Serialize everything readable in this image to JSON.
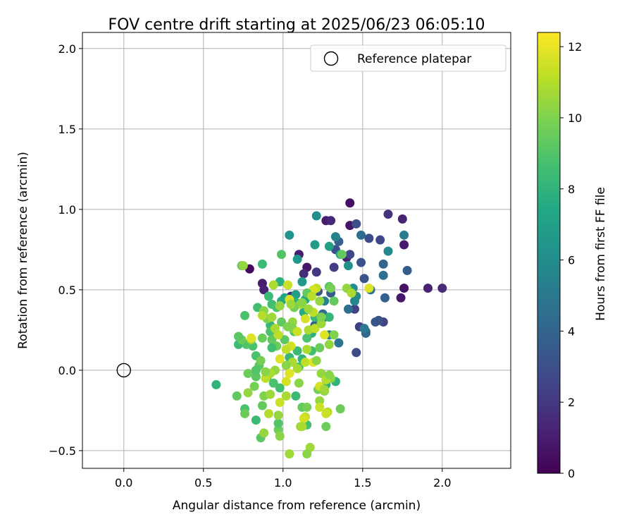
{
  "chart_data": {
    "type": "scatter",
    "title": "FOV centre drift starting at 2025/06/23 06:05:10",
    "xlabel": "Angular distance from reference (arcmin)",
    "ylabel": "Rotation from reference (arcmin)",
    "xlim": [
      -0.26,
      2.43
    ],
    "ylim": [
      -0.61,
      2.1
    ],
    "xticks": [
      0.0,
      0.5,
      1.0,
      1.5,
      2.0
    ],
    "xtick_labels": [
      "0.0",
      "0.5",
      "1.0",
      "1.5",
      "2.0"
    ],
    "yticks": [
      -0.5,
      0.0,
      0.5,
      1.0,
      1.5,
      2.0
    ],
    "ytick_labels": [
      "−0.5",
      "0.0",
      "0.5",
      "1.0",
      "1.5",
      "2.0"
    ],
    "grid": true,
    "legend": {
      "position": "top-right",
      "label": "Reference platepar"
    },
    "reference_point": {
      "x": 0.0,
      "y": 0.0
    },
    "colorbar": {
      "label": "Hours from first FF file",
      "range": [
        0,
        12.4
      ],
      "ticks": [
        0,
        2,
        4,
        6,
        8,
        10,
        12
      ],
      "tick_labels": [
        "0",
        "2",
        "4",
        "6",
        "8",
        "10",
        "12"
      ],
      "colormap": "viridis"
    },
    "points": [
      [
        1.42,
        1.04,
        0.5
      ],
      [
        0.79,
        0.63,
        0.3
      ],
      [
        1.76,
        0.51,
        0.6
      ],
      [
        1.91,
        0.51,
        1.2
      ],
      [
        2.0,
        0.51,
        1.5
      ],
      [
        1.74,
        0.45,
        0.8
      ],
      [
        1.76,
        0.78,
        0.9
      ],
      [
        1.75,
        0.94,
        1.2
      ],
      [
        1.66,
        0.97,
        1.8
      ],
      [
        1.42,
        0.9,
        0.7
      ],
      [
        1.27,
        0.93,
        1.0
      ],
      [
        1.3,
        0.93,
        1.4
      ],
      [
        1.4,
        0.7,
        1.2
      ],
      [
        1.1,
        0.72,
        1.0
      ],
      [
        1.15,
        0.64,
        0.8
      ],
      [
        1.13,
        0.6,
        1.6
      ],
      [
        0.87,
        0.54,
        1.0
      ],
      [
        0.88,
        0.5,
        1.2
      ],
      [
        1.05,
        0.46,
        1.5
      ],
      [
        1.21,
        0.61,
        2.0
      ],
      [
        1.32,
        0.64,
        2.2
      ],
      [
        1.45,
        0.38,
        2.4
      ],
      [
        1.61,
        0.81,
        2.6
      ],
      [
        1.54,
        0.82,
        2.8
      ],
      [
        1.63,
        0.3,
        2.5
      ],
      [
        1.48,
        0.27,
        2.2
      ],
      [
        1.46,
        0.11,
        2.8
      ],
      [
        1.42,
        0.72,
        2.6
      ],
      [
        1.46,
        0.91,
        3.0
      ],
      [
        1.49,
        0.67,
        3.2
      ],
      [
        1.33,
        0.75,
        3.0
      ],
      [
        1.22,
        0.49,
        3.4
      ],
      [
        1.3,
        0.48,
        3.6
      ],
      [
        1.58,
        0.3,
        3.4
      ],
      [
        1.6,
        0.31,
        3.2
      ],
      [
        1.52,
        0.24,
        3.5
      ],
      [
        1.64,
        0.45,
        3.8
      ],
      [
        1.78,
        0.62,
        3.6
      ],
      [
        1.63,
        0.66,
        4.0
      ],
      [
        1.51,
        0.57,
        3.2
      ],
      [
        1.52,
        0.23,
        4.2
      ],
      [
        1.49,
        0.84,
        4.4
      ],
      [
        1.35,
        0.8,
        3.8
      ],
      [
        1.41,
        0.38,
        4.5
      ],
      [
        1.42,
        0.5,
        4.6
      ],
      [
        1.25,
        0.35,
        4.4
      ],
      [
        1.2,
        0.28,
        4.0
      ],
      [
        1.35,
        0.17,
        4.8
      ],
      [
        1.26,
        0.33,
        5.0
      ],
      [
        1.29,
        0.22,
        5.2
      ],
      [
        1.16,
        0.38,
        5.0
      ],
      [
        1.26,
        0.43,
        5.4
      ],
      [
        1.45,
        0.43,
        5.6
      ],
      [
        1.46,
        0.46,
        5.8
      ],
      [
        1.44,
        0.51,
        6.0
      ],
      [
        1.51,
        0.26,
        5.0
      ],
      [
        1.63,
        0.59,
        4.6
      ],
      [
        1.76,
        0.84,
        5.2
      ],
      [
        1.66,
        0.74,
        5.8
      ],
      [
        1.55,
        0.5,
        4.8
      ],
      [
        1.41,
        0.65,
        6.2
      ],
      [
        1.33,
        0.83,
        5.5
      ],
      [
        1.21,
        0.96,
        6.0
      ],
      [
        1.04,
        0.84,
        6.4
      ],
      [
        1.09,
        0.69,
        6.6
      ],
      [
        1.2,
        0.78,
        6.8
      ],
      [
        1.29,
        0.77,
        7.0
      ],
      [
        1.36,
        0.72,
        7.2
      ],
      [
        1.42,
        0.5,
        6.4
      ],
      [
        1.12,
        0.55,
        6.6
      ],
      [
        1.08,
        0.47,
        7.0
      ],
      [
        1.14,
        0.44,
        7.4
      ],
      [
        0.99,
        0.43,
        7.6
      ],
      [
        1.01,
        0.45,
        7.2
      ],
      [
        0.98,
        0.55,
        7.8
      ],
      [
        1.08,
        0.42,
        8.0
      ],
      [
        1.13,
        0.36,
        7.6
      ],
      [
        1.2,
        0.33,
        8.2
      ],
      [
        1.18,
        0.23,
        8.0
      ],
      [
        1.24,
        0.29,
        7.8
      ],
      [
        1.29,
        0.33,
        8.2
      ],
      [
        0.91,
        0.46,
        8.4
      ],
      [
        0.93,
        0.41,
        8.6
      ],
      [
        0.96,
        0.39,
        8.8
      ],
      [
        0.92,
        0.28,
        8.2
      ],
      [
        0.84,
        0.39,
        8.6
      ],
      [
        0.87,
        0.66,
        8.4
      ],
      [
        0.99,
        0.72,
        9.0
      ],
      [
        1.29,
        0.52,
        9.2
      ],
      [
        1.37,
        0.72,
        9.4
      ],
      [
        1.15,
        0.2,
        8.8
      ],
      [
        1.09,
        0.12,
        8.4
      ],
      [
        1.12,
        0.07,
        8.0
      ],
      [
        1.04,
        0.08,
        8.2
      ],
      [
        1.18,
        0.12,
        8.6
      ],
      [
        1.1,
        0.02,
        8.8
      ],
      [
        1.27,
        -0.09,
        7.8
      ],
      [
        1.33,
        -0.07,
        8.0
      ],
      [
        1.08,
        -0.16,
        8.4
      ],
      [
        0.98,
        -0.11,
        8.6
      ],
      [
        0.94,
        -0.08,
        8.8
      ],
      [
        0.9,
        -0.04,
        9.0
      ],
      [
        0.83,
        -0.04,
        9.2
      ],
      [
        0.81,
        0.15,
        8.8
      ],
      [
        0.72,
        0.16,
        8.4
      ],
      [
        0.77,
        0.16,
        9.0
      ],
      [
        0.92,
        0.24,
        8.8
      ],
      [
        0.93,
        0.19,
        9.4
      ],
      [
        0.96,
        0.15,
        9.6
      ],
      [
        1.01,
        0.19,
        9.2
      ],
      [
        1.07,
        0.24,
        9.0
      ],
      [
        0.93,
        0.14,
        8.6
      ],
      [
        0.83,
        0.09,
        8.8
      ],
      [
        0.85,
        0.03,
        9.2
      ],
      [
        0.78,
        -0.02,
        9.6
      ],
      [
        0.83,
        0.0,
        9.0
      ],
      [
        0.76,
        0.34,
        8.8
      ],
      [
        0.58,
        -0.09,
        8.0
      ],
      [
        0.71,
        -0.16,
        9.4
      ],
      [
        0.76,
        -0.24,
        8.8
      ],
      [
        0.76,
        -0.27,
        9.6
      ],
      [
        0.83,
        -0.31,
        8.4
      ],
      [
        0.87,
        -0.22,
        9.4
      ],
      [
        0.86,
        -0.42,
        9.2
      ],
      [
        0.88,
        -0.39,
        10.4
      ],
      [
        0.97,
        -0.37,
        9.6
      ],
      [
        0.97,
        -0.33,
        9.0
      ],
      [
        0.98,
        -0.41,
        10.2
      ],
      [
        1.04,
        -0.52,
        10.6
      ],
      [
        1.12,
        -0.23,
        9.4
      ],
      [
        1.15,
        -0.23,
        9.8
      ],
      [
        1.15,
        -0.34,
        8.6
      ],
      [
        1.11,
        -0.35,
        10.4
      ],
      [
        1.14,
        -0.29,
        11.2
      ],
      [
        1.17,
        -0.48,
        10.6
      ],
      [
        1.15,
        -0.52,
        10.2
      ],
      [
        1.23,
        -0.19,
        10.4
      ],
      [
        1.22,
        -0.12,
        9.8
      ],
      [
        1.26,
        -0.13,
        10.2
      ],
      [
        1.28,
        -0.26,
        11.0
      ],
      [
        1.27,
        -0.35,
        9.6
      ],
      [
        1.27,
        -0.27,
        11.4
      ],
      [
        1.3,
        -0.05,
        10.2
      ],
      [
        1.36,
        -0.24,
        9.6
      ],
      [
        1.32,
        0.43,
        9.4
      ],
      [
        1.3,
        0.51,
        9.8
      ],
      [
        1.4,
        0.51,
        10.4
      ],
      [
        1.43,
        0.48,
        10.8
      ],
      [
        1.54,
        0.51,
        11.8
      ],
      [
        1.21,
        0.51,
        11.2
      ],
      [
        1.19,
        0.5,
        11.6
      ],
      [
        1.03,
        0.53,
        11.4
      ],
      [
        0.94,
        0.53,
        10.8
      ],
      [
        0.74,
        0.65,
        9.4
      ],
      [
        0.75,
        0.65,
        10.4
      ],
      [
        1.04,
        0.44,
        11.6
      ],
      [
        1.11,
        0.41,
        10.8
      ],
      [
        1.23,
        0.43,
        10.4
      ],
      [
        1.19,
        0.36,
        11.2
      ],
      [
        1.16,
        0.38,
        10.6
      ],
      [
        1.14,
        0.32,
        11.6
      ],
      [
        1.06,
        0.3,
        10.4
      ],
      [
        1.06,
        0.26,
        10.0
      ],
      [
        1.09,
        0.24,
        11.4
      ],
      [
        1.16,
        0.25,
        10.8
      ],
      [
        1.2,
        0.26,
        11.2
      ],
      [
        1.24,
        0.29,
        10.6
      ],
      [
        1.26,
        0.22,
        11.8
      ],
      [
        1.29,
        0.16,
        10.4
      ],
      [
        1.32,
        0.22,
        10.0
      ],
      [
        1.23,
        0.14,
        9.6
      ],
      [
        1.15,
        0.13,
        10.8
      ],
      [
        1.05,
        0.15,
        11.6
      ],
      [
        1.02,
        0.13,
        11.2
      ],
      [
        1.06,
        0.05,
        10.8
      ],
      [
        1.02,
        0.03,
        10.2
      ],
      [
        0.98,
        0.07,
        11.8
      ],
      [
        0.95,
        0.0,
        10.4
      ],
      [
        0.92,
        -0.02,
        10.8
      ],
      [
        0.89,
        -0.05,
        11.2
      ],
      [
        0.82,
        -0.1,
        9.8
      ],
      [
        0.78,
        -0.14,
        10.4
      ],
      [
        0.88,
        -0.16,
        10.0
      ],
      [
        0.91,
        -0.27,
        11.0
      ],
      [
        0.97,
        -0.28,
        10.4
      ],
      [
        0.98,
        -0.2,
        11.4
      ],
      [
        1.02,
        -0.16,
        10.8
      ],
      [
        1.02,
        -0.07,
        11.6
      ],
      [
        1.1,
        -0.08,
        10.2
      ],
      [
        1.04,
        -0.02,
        11.8
      ],
      [
        1.09,
        0.01,
        10.8
      ],
      [
        1.14,
        0.05,
        11.2
      ],
      [
        1.19,
        0.05,
        11.8
      ],
      [
        1.21,
        0.06,
        10.2
      ],
      [
        1.24,
        -0.02,
        10.4
      ],
      [
        1.27,
        -0.06,
        11.0
      ],
      [
        1.23,
        -0.1,
        11.6
      ],
      [
        1.26,
        -0.12,
        10.6
      ],
      [
        1.23,
        -0.23,
        11.4
      ],
      [
        1.29,
        -0.03,
        10.2
      ],
      [
        1.13,
        -0.3,
        11.6
      ],
      [
        1.12,
        -0.35,
        10.8
      ],
      [
        0.92,
        -0.15,
        10.6
      ],
      [
        0.89,
        -0.01,
        10.2
      ],
      [
        0.86,
        0.06,
        9.8
      ],
      [
        0.8,
        0.19,
        10.6
      ],
      [
        0.74,
        0.19,
        9.6
      ],
      [
        0.72,
        0.21,
        9.2
      ],
      [
        0.8,
        0.2,
        11.8
      ],
      [
        0.87,
        0.2,
        9.6
      ],
      [
        0.9,
        0.32,
        10.0
      ],
      [
        0.93,
        0.33,
        10.6
      ],
      [
        0.88,
        0.37,
        10.2
      ],
      [
        0.87,
        0.34,
        11.0
      ],
      [
        0.98,
        0.4,
        10.4
      ],
      [
        1.07,
        0.39,
        9.8
      ],
      [
        1.12,
        0.42,
        10.2
      ],
      [
        1.15,
        0.48,
        9.4
      ],
      [
        1.18,
        0.46,
        11.0
      ],
      [
        1.24,
        0.33,
        10.0
      ],
      [
        1.05,
        0.41,
        10.6
      ],
      [
        0.97,
        0.22,
        11.2
      ],
      [
        0.95,
        0.26,
        10.8
      ],
      [
        0.99,
        0.3,
        9.4
      ],
      [
        1.03,
        0.27,
        10.0
      ]
    ]
  }
}
